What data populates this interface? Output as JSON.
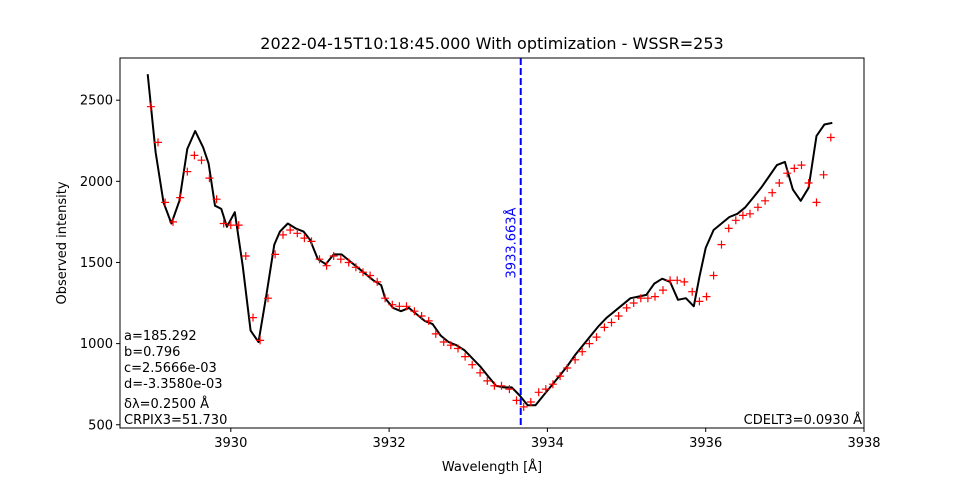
{
  "chart_data": {
    "type": "line",
    "title": "2022-04-15T10:18:45.000 With optimization - WSSR=253",
    "xlabel": "Wavelength [Å]",
    "ylabel": "Observed intensity",
    "xlim": [
      3928.6,
      3938.0
    ],
    "ylim": [
      480,
      2760
    ],
    "xticks": [
      3930,
      3932,
      3934,
      3936,
      3938
    ],
    "yticks": [
      500,
      1000,
      1500,
      2000,
      2500
    ],
    "grid": false,
    "colors": {
      "fit": "#000000",
      "observed": "#ff0000",
      "marker_line": "#0000ff"
    },
    "marker_line": {
      "x": 3933.663,
      "label": "3933.663Å"
    },
    "annotations_left": [
      "a=185.292",
      "b=0.796",
      "c=2.5666e-03",
      "d=-3.3580e-03",
      "δλ=0.2500 Å",
      "CRPIX3=51.730"
    ],
    "annotation_right": "CDELT3=0.0930 Å",
    "series": [
      {
        "marker": "+",
        "x": [
          3928.99,
          3929.08,
          3929.17,
          3929.27,
          3929.36,
          3929.45,
          3929.54,
          3929.63,
          3929.73,
          3929.82,
          3929.91,
          3930.0,
          3930.1,
          3930.19,
          3930.28,
          3930.37,
          3930.47,
          3930.56,
          3930.66,
          3930.75,
          3930.84,
          3930.93,
          3931.02,
          3931.12,
          3931.21,
          3931.3,
          3931.39,
          3931.49,
          3931.58,
          3931.67,
          3931.76,
          3931.85,
          3931.95,
          3932.04,
          3932.13,
          3932.22,
          3932.32,
          3932.41,
          3932.5,
          3932.59,
          3932.69,
          3932.78,
          3932.87,
          3932.96,
          3933.05,
          3933.15,
          3933.24,
          3933.33,
          3933.42,
          3933.52,
          3933.61,
          3933.7,
          3933.79,
          3933.89,
          3933.98,
          3934.07,
          3934.16,
          3934.25,
          3934.35,
          3934.44,
          3934.53,
          3934.62,
          3934.72,
          3934.81,
          3934.9,
          3935.0,
          3935.09,
          3935.18,
          3935.27,
          3935.36,
          3935.46,
          3935.55,
          3935.64,
          3935.73,
          3935.83,
          3935.92,
          3936.01,
          3936.1,
          3936.2,
          3936.29,
          3936.38,
          3936.47,
          3936.56,
          3936.66,
          3936.75,
          3936.84,
          3936.93,
          3937.03,
          3937.12,
          3937.21,
          3937.3,
          3937.4,
          3937.49,
          3937.58
        ],
        "values": [
          2460,
          2240,
          1870,
          1750,
          1900,
          2060,
          2160,
          2130,
          2020,
          1890,
          1740,
          1730,
          1730,
          1540,
          1160,
          1020,
          1280,
          1550,
          1670,
          1700,
          1680,
          1650,
          1630,
          1520,
          1480,
          1540,
          1520,
          1500,
          1470,
          1440,
          1420,
          1380,
          1280,
          1240,
          1230,
          1230,
          1200,
          1170,
          1140,
          1060,
          1010,
          990,
          970,
          920,
          870,
          820,
          770,
          740,
          740,
          720,
          650,
          610,
          640,
          700,
          720,
          750,
          800,
          850,
          900,
          950,
          1000,
          1040,
          1100,
          1130,
          1170,
          1220,
          1250,
          1280,
          1280,
          1290,
          1330,
          1390,
          1390,
          1380,
          1320,
          1260,
          1290,
          1420,
          1610,
          1710,
          1760,
          1790,
          1800,
          1840,
          1880,
          1930,
          1990,
          2050,
          2080,
          2100,
          1990,
          1870,
          2040,
          2270
        ]
      },
      {
        "x": [
          3928.95,
          3929.05,
          3929.15,
          3929.25,
          3929.35,
          3929.45,
          3929.55,
          3929.65,
          3929.72,
          3929.8,
          3929.88,
          3929.95,
          3930.05,
          3930.15,
          3930.25,
          3930.35,
          3930.45,
          3930.55,
          3930.62,
          3930.72,
          3930.82,
          3930.92,
          3931.0,
          3931.1,
          3931.2,
          3931.3,
          3931.4,
          3931.5,
          3931.6,
          3931.7,
          3931.8,
          3931.9,
          3931.95,
          3932.05,
          3932.15,
          3932.25,
          3932.35,
          3932.45,
          3932.55,
          3932.65,
          3932.75,
          3932.85,
          3932.95,
          3933.05,
          3933.15,
          3933.25,
          3933.35,
          3933.45,
          3933.55,
          3933.65,
          3933.75,
          3933.85,
          3933.95,
          3934.05,
          3934.15,
          3934.25,
          3934.35,
          3934.45,
          3934.55,
          3934.65,
          3934.75,
          3934.85,
          3934.95,
          3935.05,
          3935.15,
          3935.25,
          3935.35,
          3935.45,
          3935.55,
          3935.65,
          3935.75,
          3935.85,
          3935.92,
          3936.0,
          3936.1,
          3936.2,
          3936.3,
          3936.4,
          3936.5,
          3936.6,
          3936.7,
          3936.8,
          3936.9,
          3937.0,
          3937.1,
          3937.2,
          3937.3,
          3937.4,
          3937.5,
          3937.6
        ],
        "values": [
          2660,
          2180,
          1870,
          1740,
          1880,
          2200,
          2310,
          2210,
          2110,
          1850,
          1830,
          1720,
          1810,
          1480,
          1080,
          1010,
          1300,
          1610,
          1690,
          1740,
          1710,
          1690,
          1640,
          1520,
          1490,
          1550,
          1550,
          1510,
          1470,
          1430,
          1390,
          1360,
          1280,
          1220,
          1200,
          1220,
          1180,
          1140,
          1120,
          1050,
          1010,
          990,
          960,
          910,
          860,
          800,
          740,
          730,
          730,
          680,
          620,
          620,
          680,
          740,
          800,
          860,
          930,
          990,
          1050,
          1110,
          1160,
          1200,
          1240,
          1280,
          1290,
          1300,
          1370,
          1400,
          1380,
          1270,
          1280,
          1230,
          1410,
          1590,
          1700,
          1740,
          1780,
          1800,
          1840,
          1900,
          1960,
          2030,
          2100,
          2120,
          1950,
          1880,
          1960,
          2280,
          2350,
          2360
        ]
      }
    ]
  }
}
